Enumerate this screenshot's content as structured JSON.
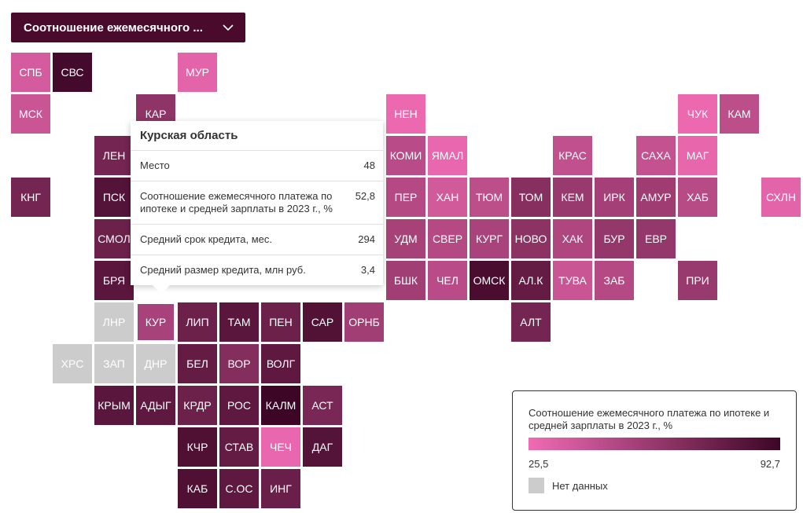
{
  "dropdown": {
    "label": "Соотношение ежемесячного ..."
  },
  "colors": {
    "dropdown_bg": "#4a0a2c",
    "no_data": "#cccccc",
    "scale_low": "#f06bb3",
    "scale_high": "#3d0626"
  },
  "tooltip": {
    "title": "Курская область",
    "rows": [
      {
        "label": "Место",
        "value": "48"
      },
      {
        "label": "Соотношение ежемесячного платежа по ипотеке и средней зарплаты в 2023 г., %",
        "value": "52,8"
      },
      {
        "label": "Средний срок кредита, мес.",
        "value": "294"
      },
      {
        "label": "Средний размер кредита, млн руб.",
        "value": "3,4"
      }
    ]
  },
  "legend": {
    "title": "Соотношение ежемесячного платежа по ипотеке и средней зарплаты в 2023 г., %",
    "min": "25,5",
    "max": "92,7",
    "min_value": 25.5,
    "max_value": 92.7,
    "no_data_label": "Нет данных"
  },
  "regions": [
    {
      "code": "СПБ",
      "row": 0,
      "col": 0,
      "value": 36
    },
    {
      "code": "СВС",
      "row": 0,
      "col": 1,
      "value": 90
    },
    {
      "code": "МУР",
      "row": 0,
      "col": 4,
      "value": 30
    },
    {
      "code": "МСК",
      "row": 1,
      "col": 0,
      "value": 40
    },
    {
      "code": "КАР",
      "row": 1,
      "col": 3,
      "value": 62
    },
    {
      "code": "НЕН",
      "row": 1,
      "col": 9,
      "value": 27
    },
    {
      "code": "ЧУК",
      "row": 1,
      "col": 16,
      "value": 27
    },
    {
      "code": "КАМ",
      "row": 1,
      "col": 17,
      "value": 45
    },
    {
      "code": "ЛЕН",
      "row": 2,
      "col": 2,
      "value": 72
    },
    {
      "code": "КОМИ",
      "row": 2,
      "col": 9,
      "value": 46
    },
    {
      "code": "ЯМАЛ",
      "row": 2,
      "col": 10,
      "value": 28
    },
    {
      "code": "КРАС",
      "row": 2,
      "col": 13,
      "value": 43
    },
    {
      "code": "САХА",
      "row": 2,
      "col": 15,
      "value": 42
    },
    {
      "code": "МАГ",
      "row": 2,
      "col": 16,
      "value": 29
    },
    {
      "code": "КНГ",
      "row": 3,
      "col": 0,
      "value": 72
    },
    {
      "code": "ПСК",
      "row": 3,
      "col": 2,
      "value": 84
    },
    {
      "code": "ПЕР",
      "row": 3,
      "col": 9,
      "value": 48
    },
    {
      "code": "ХАН",
      "row": 3,
      "col": 10,
      "value": 37
    },
    {
      "code": "ТЮМ",
      "row": 3,
      "col": 11,
      "value": 45
    },
    {
      "code": "ТОМ",
      "row": 3,
      "col": 12,
      "value": 65
    },
    {
      "code": "КЕМ",
      "row": 3,
      "col": 13,
      "value": 58
    },
    {
      "code": "ИРК",
      "row": 3,
      "col": 14,
      "value": 54
    },
    {
      "code": "АМУР",
      "row": 3,
      "col": 15,
      "value": 56
    },
    {
      "code": "ХАБ",
      "row": 3,
      "col": 16,
      "value": 47
    },
    {
      "code": "СХЛН",
      "row": 3,
      "col": 18,
      "value": 30
    },
    {
      "code": "СМОЛ",
      "row": 4,
      "col": 2,
      "value": 75
    },
    {
      "code": "УДМ",
      "row": 4,
      "col": 9,
      "value": 53
    },
    {
      "code": "СВЕР",
      "row": 4,
      "col": 10,
      "value": 48
    },
    {
      "code": "КУРГ",
      "row": 4,
      "col": 11,
      "value": 52
    },
    {
      "code": "НОВО",
      "row": 4,
      "col": 12,
      "value": 63
    },
    {
      "code": "ХАК",
      "row": 4,
      "col": 13,
      "value": 50
    },
    {
      "code": "БУР",
      "row": 4,
      "col": 14,
      "value": 60
    },
    {
      "code": "ЕВР",
      "row": 4,
      "col": 15,
      "value": 60
    },
    {
      "code": "БРЯ",
      "row": 5,
      "col": 2,
      "value": 82
    },
    {
      "code": "БШК",
      "row": 5,
      "col": 9,
      "value": 55
    },
    {
      "code": "ЧЕЛ",
      "row": 5,
      "col": 10,
      "value": 46
    },
    {
      "code": "ОМСК",
      "row": 5,
      "col": 11,
      "value": 88
    },
    {
      "code": "АЛ.К",
      "row": 5,
      "col": 12,
      "value": 78
    },
    {
      "code": "ТУВА",
      "row": 5,
      "col": 13,
      "value": 40
    },
    {
      "code": "ЗАБ",
      "row": 5,
      "col": 14,
      "value": 48
    },
    {
      "code": "ПРИ",
      "row": 5,
      "col": 16,
      "value": 58
    },
    {
      "code": "ЛНР",
      "row": 6,
      "col": 2,
      "value": null
    },
    {
      "code": "КУР",
      "row": 6,
      "col": 3,
      "value": 52.8
    },
    {
      "code": "ЛИП",
      "row": 6,
      "col": 4,
      "value": 75
    },
    {
      "code": "ТАМ",
      "row": 6,
      "col": 5,
      "value": 82
    },
    {
      "code": "ПЕН",
      "row": 6,
      "col": 6,
      "value": 75
    },
    {
      "code": "САР",
      "row": 6,
      "col": 7,
      "value": 85
    },
    {
      "code": "ОРНБ",
      "row": 6,
      "col": 8,
      "value": 55
    },
    {
      "code": "АЛТ",
      "row": 6,
      "col": 12,
      "value": 72
    },
    {
      "code": "ХРС",
      "row": 7,
      "col": 1,
      "value": null
    },
    {
      "code": "ЗАП",
      "row": 7,
      "col": 2,
      "value": null
    },
    {
      "code": "ДНР",
      "row": 7,
      "col": 3,
      "value": null
    },
    {
      "code": "БЕЛ",
      "row": 7,
      "col": 4,
      "value": 78
    },
    {
      "code": "ВОР",
      "row": 7,
      "col": 5,
      "value": 66
    },
    {
      "code": "ВОЛГ",
      "row": 7,
      "col": 6,
      "value": 80
    },
    {
      "code": "КРЫМ",
      "row": 8,
      "col": 2,
      "value": 82
    },
    {
      "code": "АДЫГ",
      "row": 8,
      "col": 3,
      "value": 80
    },
    {
      "code": "КРДР",
      "row": 8,
      "col": 4,
      "value": 75
    },
    {
      "code": "РОС",
      "row": 8,
      "col": 5,
      "value": 80
    },
    {
      "code": "КАЛМ",
      "row": 8,
      "col": 6,
      "value": 92.7
    },
    {
      "code": "АСТ",
      "row": 8,
      "col": 7,
      "value": 70
    },
    {
      "code": "КЧР",
      "row": 9,
      "col": 4,
      "value": 86
    },
    {
      "code": "СТАВ",
      "row": 9,
      "col": 5,
      "value": 78
    },
    {
      "code": "ЧЕЧ",
      "row": 9,
      "col": 6,
      "value": 28
    },
    {
      "code": "ДАГ",
      "row": 9,
      "col": 7,
      "value": 84
    },
    {
      "code": "КАБ",
      "row": 10,
      "col": 4,
      "value": 86
    },
    {
      "code": "С.ОС",
      "row": 10,
      "col": 5,
      "value": 80
    },
    {
      "code": "ИНГ",
      "row": 10,
      "col": 6,
      "value": 76
    }
  ],
  "selected_region": "КУР"
}
